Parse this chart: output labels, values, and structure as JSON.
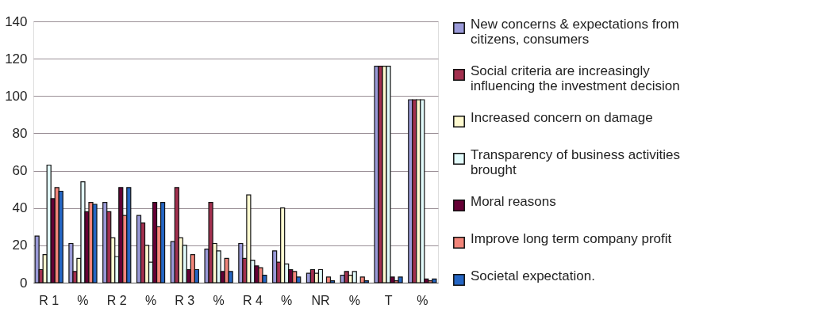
{
  "chart_data": {
    "type": "bar",
    "categories": [
      "R 1",
      "%",
      "R 2",
      "%",
      "R 3",
      "%",
      "R 4",
      "%",
      "NR",
      "%",
      "T",
      "%"
    ],
    "series": [
      {
        "name": "New concerns & expectations from citizens, consumers",
        "color": "#9a9ad8",
        "values": [
          25,
          21,
          43,
          36,
          22,
          18,
          21,
          17,
          5,
          4,
          116,
          98
        ]
      },
      {
        "name": "Social criteria are increasingly influencing the investment decision",
        "color": "#a3304f",
        "values": [
          7,
          6,
          38,
          32,
          51,
          43,
          13,
          11,
          7,
          6,
          116,
          98
        ]
      },
      {
        "name": "Increased concern on damage",
        "color": "#fffad0",
        "values": [
          15,
          13,
          24,
          20,
          24,
          21,
          47,
          40,
          5,
          4,
          116,
          98
        ]
      },
      {
        "name": "Transparency of business activities brought",
        "color": "#e2fbfb",
        "values": [
          63,
          54,
          14,
          11,
          20,
          17,
          12,
          10,
          7,
          6,
          116,
          98
        ]
      },
      {
        "name": "Moral reasons",
        "color": "#650035",
        "values": [
          45,
          38,
          51,
          43,
          7,
          6,
          9,
          7,
          null,
          null,
          3,
          2
        ]
      },
      {
        "name": "Improve long term company profit",
        "color": "#f2857a",
        "values": [
          51,
          43,
          36,
          30,
          15,
          13,
          8,
          6,
          3,
          3,
          1,
          1
        ]
      },
      {
        "name": "Societal expectation.",
        "color": "#2566c4",
        "values": [
          49,
          42,
          51,
          43,
          7,
          6,
          4,
          3,
          1,
          1,
          3,
          2
        ]
      }
    ],
    "ylim": [
      0,
      140
    ],
    "yticks": [
      0,
      20,
      40,
      60,
      80,
      100,
      120,
      140
    ],
    "grid": "y",
    "legend": "right"
  }
}
